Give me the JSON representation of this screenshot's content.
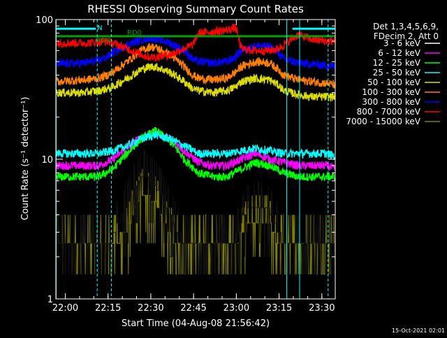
{
  "chart_data": {
    "type": "line",
    "title": "RHESSI Observing Summary Count Rates",
    "xlabel": "Start Time (04-Aug-08 21:56:42)",
    "ylabel": "Count Rate (s⁻¹ detector⁻¹)",
    "yscale": "log",
    "ylim": [
      1,
      100
    ],
    "xlim_minutes": [
      0,
      98
    ],
    "x_ticks": [
      {
        "label": "22:00",
        "minute": 3.3
      },
      {
        "label": "22:15",
        "minute": 18.3
      },
      {
        "label": "22:30",
        "minute": 33.3
      },
      {
        "label": "22:45",
        "minute": 48.3
      },
      {
        "label": "23:00",
        "minute": 63.3
      },
      {
        "label": "23:15",
        "minute": 78.3
      },
      {
        "label": "23:30",
        "minute": 93.3
      }
    ],
    "y_ticks": [
      {
        "label": "1",
        "value": 1
      },
      {
        "label": "10",
        "value": 10
      },
      {
        "label": "100",
        "value": 100
      }
    ],
    "legend_header": [
      "Det 1,3,4,5,6,9,",
      "FDecim 2, Att 0"
    ],
    "legend_placement": "right",
    "flag_labels": [
      {
        "text": "N",
        "color": "#00ffff"
      },
      {
        "text": "RD0",
        "color": "#00a000"
      },
      {
        "text": "RD4",
        "color": "#00a000"
      }
    ],
    "series": [
      {
        "name": "3 - 6 keV",
        "color": "#000000",
        "x": [
          0,
          10,
          15,
          20,
          25,
          28,
          30,
          32,
          35,
          38,
          42,
          45,
          48,
          50,
          55,
          60,
          63,
          66,
          68,
          70,
          72,
          75,
          78,
          80,
          85,
          90,
          95,
          98
        ],
        "y": [
          2.5,
          2.5,
          2.5,
          2.8,
          4.5,
          6.5,
          7.5,
          7.5,
          6.5,
          5,
          3.2,
          2.5,
          2.5,
          2.5,
          2.5,
          2.5,
          2.6,
          4,
          4.5,
          4.5,
          4.5,
          4.3,
          3,
          2.5,
          2.5,
          2.5,
          2.5,
          2.5
        ]
      },
      {
        "name": "6 - 12 keV",
        "color": "#ff00ff",
        "x": [
          0,
          10,
          15,
          20,
          25,
          30,
          35,
          40,
          45,
          50,
          55,
          60,
          65,
          70,
          75,
          80,
          85,
          90,
          95,
          98
        ],
        "y": [
          9,
          9,
          9,
          10,
          12,
          14.5,
          15.5,
          14,
          11.5,
          9.5,
          9,
          9,
          10,
          11,
          10,
          9.5,
          9,
          9,
          9,
          8.5
        ]
      },
      {
        "name": "12 - 25 keV",
        "color": "#00ff00",
        "x": [
          0,
          10,
          15,
          20,
          25,
          30,
          35,
          40,
          45,
          50,
          55,
          60,
          65,
          70,
          75,
          80,
          85,
          90,
          95,
          98
        ],
        "y": [
          7.5,
          7.5,
          7.5,
          8.5,
          11,
          14,
          16,
          13.5,
          10,
          8,
          7.5,
          7.5,
          8.5,
          9.5,
          9,
          8,
          7.5,
          7.5,
          7.5,
          7.5
        ]
      },
      {
        "name": "25 - 50 keV",
        "color": "#00ffff",
        "x": [
          0,
          10,
          15,
          20,
          25,
          30,
          35,
          40,
          45,
          50,
          55,
          60,
          65,
          70,
          75,
          80,
          85,
          90,
          95,
          98
        ],
        "y": [
          11,
          11,
          11,
          11.5,
          12.5,
          14,
          15,
          14,
          12.5,
          11,
          11,
          11,
          11.5,
          12,
          11.5,
          11,
          11,
          11,
          11,
          10.5
        ]
      },
      {
        "name": "50 - 100 keV",
        "color": "#dddd00",
        "x": [
          0,
          10,
          15,
          18,
          20,
          25,
          30,
          33,
          35,
          40,
          45,
          48,
          50,
          55,
          60,
          63,
          65,
          70,
          75,
          78,
          80,
          85,
          90,
          95,
          98
        ],
        "y": [
          30,
          30,
          31,
          32,
          33,
          38,
          44,
          46,
          46,
          42,
          36,
          32,
          31,
          30,
          31,
          33,
          36,
          38,
          37,
          34,
          31,
          29,
          28,
          28,
          28
        ]
      },
      {
        "name": "100 - 300 keV",
        "color": "#ff8000",
        "x": [
          0,
          10,
          15,
          18,
          20,
          25,
          30,
          33,
          35,
          40,
          45,
          48,
          50,
          55,
          60,
          63,
          65,
          70,
          75,
          78,
          80,
          85,
          90,
          95,
          98
        ],
        "y": [
          36,
          37,
          38,
          40,
          42,
          50,
          60,
          64,
          63,
          56,
          46,
          40,
          38,
          37,
          38,
          42,
          46,
          50,
          49,
          44,
          40,
          37,
          36,
          35,
          34
        ]
      },
      {
        "name": "300 - 800 keV",
        "color": "#0000ff",
        "x": [
          0,
          10,
          15,
          18,
          20,
          25,
          30,
          33,
          35,
          40,
          45,
          48,
          50,
          55,
          60,
          63,
          65,
          70,
          75,
          78,
          80,
          85,
          90,
          95,
          98
        ],
        "y": [
          48,
          49,
          51,
          54,
          58,
          66,
          72,
          74,
          73,
          68,
          60,
          52,
          50,
          49,
          50,
          54,
          60,
          65,
          64,
          58,
          52,
          49,
          48,
          47,
          46
        ]
      },
      {
        "name": "800 - 7000 keV",
        "color": "#ff0000",
        "x": [
          0,
          10,
          15,
          18,
          20,
          25,
          30,
          33,
          35,
          40,
          45,
          48,
          50,
          55,
          60,
          63,
          65,
          70,
          75,
          78,
          80,
          85,
          90,
          95,
          98
        ],
        "y": [
          68,
          68,
          69,
          70,
          68,
          62,
          56,
          54,
          54,
          56,
          62,
          66,
          80,
          82,
          84,
          88,
          62,
          60,
          60,
          62,
          66,
          78,
          72,
          70,
          70
        ]
      },
      {
        "name": "7000 - 15000 keV",
        "color": "#808000",
        "x": [
          0,
          10,
          15,
          18,
          20,
          25,
          28,
          30,
          32,
          35,
          38,
          42,
          45,
          48,
          50,
          55,
          60,
          63,
          65,
          68,
          70,
          72,
          75,
          78,
          80,
          85,
          90,
          95,
          98
        ],
        "y": [
          2.5,
          2.5,
          2.5,
          2.5,
          2.5,
          3,
          4.5,
          5.5,
          5.5,
          5,
          3.5,
          2.5,
          2.5,
          2.5,
          2.5,
          2.5,
          2.5,
          2.5,
          2.8,
          3.5,
          3.5,
          3.5,
          3.5,
          2.5,
          2.5,
          2.5,
          2.5,
          2.5,
          2.5
        ]
      }
    ]
  },
  "footer": {
    "timestamp": "15-Oct-2021 02:01"
  }
}
